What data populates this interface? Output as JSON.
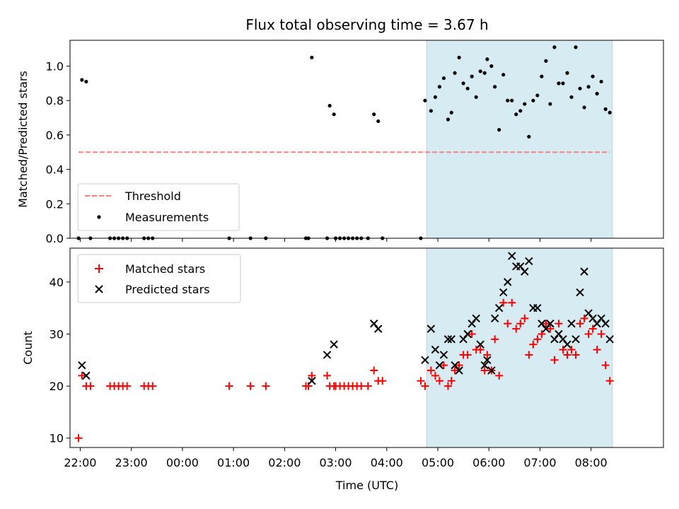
{
  "chart_data": [
    {
      "type": "scatter",
      "title": "Flux total observing time = 3.67 h",
      "ylabel": "Matched/Predicted stars",
      "xlabel": "",
      "ylim": [
        0,
        1.15
      ],
      "yticks": [
        "0.0",
        "0.2",
        "0.4",
        "0.6",
        "0.8",
        "1.0"
      ],
      "xlim": [
        "21:48",
        "09:25"
      ],
      "highlight_span": [
        "04:47",
        "08:25"
      ],
      "legend_position": "lower-left",
      "threshold": {
        "name": "Threshold",
        "value": 0.5,
        "x_start": "21:58",
        "x_end": "08:22",
        "color": "#ff7f7f",
        "style": "dashed"
      },
      "series": [
        {
          "name": "Measurements",
          "color": "#000000",
          "points": [
            [
              "21:58",
              0.0
            ],
            [
              "22:02",
              0.92
            ],
            [
              "22:07",
              0.91
            ],
            [
              "22:12",
              0.0
            ],
            [
              "22:35",
              0.0
            ],
            [
              "22:40",
              0.0
            ],
            [
              "22:45",
              0.0
            ],
            [
              "22:50",
              0.0
            ],
            [
              "22:55",
              0.0
            ],
            [
              "23:15",
              0.0
            ],
            [
              "23:20",
              0.0
            ],
            [
              "23:25",
              0.0
            ],
            [
              "00:55",
              0.0
            ],
            [
              "01:20",
              0.0
            ],
            [
              "01:38",
              0.0
            ],
            [
              "02:25",
              0.0
            ],
            [
              "02:28",
              0.0
            ],
            [
              "02:32",
              1.05
            ],
            [
              "02:50",
              0.0
            ],
            [
              "02:53",
              0.77
            ],
            [
              "02:58",
              0.72
            ],
            [
              "03:00",
              0.0
            ],
            [
              "03:05",
              0.0
            ],
            [
              "03:10",
              0.0
            ],
            [
              "03:15",
              0.0
            ],
            [
              "03:20",
              0.0
            ],
            [
              "03:25",
              0.0
            ],
            [
              "03:30",
              0.0
            ],
            [
              "03:38",
              0.0
            ],
            [
              "03:45",
              0.72
            ],
            [
              "03:50",
              0.68
            ],
            [
              "03:55",
              0.0
            ],
            [
              "04:40",
              0.0
            ],
            [
              "04:45",
              0.8
            ],
            [
              "04:52",
              0.74
            ],
            [
              "04:57",
              0.82
            ],
            [
              "05:02",
              0.88
            ],
            [
              "05:07",
              0.93
            ],
            [
              "05:12",
              0.69
            ],
            [
              "05:16",
              0.73
            ],
            [
              "05:20",
              0.96
            ],
            [
              "05:25",
              1.05
            ],
            [
              "05:30",
              0.9
            ],
            [
              "05:35",
              0.87
            ],
            [
              "05:40",
              0.94
            ],
            [
              "05:45",
              0.82
            ],
            [
              "05:50",
              0.97
            ],
            [
              "05:55",
              0.96
            ],
            [
              "05:58",
              1.04
            ],
            [
              "06:03",
              1.0
            ],
            [
              "06:07",
              0.88
            ],
            [
              "06:12",
              0.63
            ],
            [
              "06:17",
              0.95
            ],
            [
              "06:22",
              0.8
            ],
            [
              "06:27",
              0.8
            ],
            [
              "06:32",
              0.72
            ],
            [
              "06:37",
              0.74
            ],
            [
              "06:42",
              0.78
            ],
            [
              "06:47",
              0.59
            ],
            [
              "06:52",
              0.8
            ],
            [
              "06:57",
              0.83
            ],
            [
              "07:02",
              0.94
            ],
            [
              "07:07",
              1.03
            ],
            [
              "07:12",
              0.78
            ],
            [
              "07:17",
              1.11
            ],
            [
              "07:22",
              0.9
            ],
            [
              "07:27",
              0.9
            ],
            [
              "07:32",
              0.96
            ],
            [
              "07:37",
              0.82
            ],
            [
              "07:42",
              1.11
            ],
            [
              "07:47",
              0.87
            ],
            [
              "07:52",
              0.76
            ],
            [
              "07:57",
              0.88
            ],
            [
              "08:02",
              0.94
            ],
            [
              "08:07",
              0.84
            ],
            [
              "08:12",
              0.91
            ],
            [
              "08:17",
              0.75
            ],
            [
              "08:22",
              0.73
            ]
          ]
        }
      ]
    },
    {
      "type": "scatter",
      "title": "",
      "ylabel": "Count",
      "xlabel": "Time (UTC)",
      "ylim": [
        8.2,
        46.5
      ],
      "yticks": [
        "10",
        "20",
        "30",
        "40"
      ],
      "xticks": [
        "22:00",
        "23:00",
        "00:00",
        "01:00",
        "02:00",
        "03:00",
        "04:00",
        "05:00",
        "06:00",
        "07:00",
        "08:00"
      ],
      "xlim": [
        "21:48",
        "09:25"
      ],
      "highlight_span": [
        "04:47",
        "08:25"
      ],
      "legend_position": "upper-left",
      "series": [
        {
          "name": "Matched stars",
          "color": "#ff0000",
          "marker": "plus",
          "points": [
            [
              "21:58",
              10
            ],
            [
              "22:02",
              22
            ],
            [
              "22:07",
              20
            ],
            [
              "22:12",
              20
            ],
            [
              "22:35",
              20
            ],
            [
              "22:40",
              20
            ],
            [
              "22:45",
              20
            ],
            [
              "22:50",
              20
            ],
            [
              "22:55",
              20
            ],
            [
              "23:15",
              20
            ],
            [
              "23:20",
              20
            ],
            [
              "23:25",
              20
            ],
            [
              "00:55",
              20
            ],
            [
              "01:20",
              20
            ],
            [
              "01:38",
              20
            ],
            [
              "02:25",
              20
            ],
            [
              "02:28",
              20
            ],
            [
              "02:32",
              22
            ],
            [
              "02:50",
              22
            ],
            [
              "02:53",
              20
            ],
            [
              "02:58",
              20
            ],
            [
              "03:00",
              20
            ],
            [
              "03:05",
              20
            ],
            [
              "03:10",
              20
            ],
            [
              "03:15",
              20
            ],
            [
              "03:20",
              20
            ],
            [
              "03:25",
              20
            ],
            [
              "03:30",
              20
            ],
            [
              "03:38",
              20
            ],
            [
              "03:45",
              23
            ],
            [
              "03:50",
              21
            ],
            [
              "03:55",
              21
            ],
            [
              "04:40",
              21
            ],
            [
              "04:45",
              20
            ],
            [
              "04:52",
              23
            ],
            [
              "04:57",
              22
            ],
            [
              "05:02",
              21
            ],
            [
              "05:07",
              24
            ],
            [
              "05:12",
              20
            ],
            [
              "05:16",
              21
            ],
            [
              "05:20",
              23
            ],
            [
              "05:25",
              24
            ],
            [
              "05:30",
              26
            ],
            [
              "05:35",
              26
            ],
            [
              "05:40",
              30
            ],
            [
              "05:45",
              27
            ],
            [
              "05:50",
              27
            ],
            [
              "05:55",
              23
            ],
            [
              "05:58",
              26
            ],
            [
              "06:03",
              23
            ],
            [
              "06:07",
              29
            ],
            [
              "06:12",
              22
            ],
            [
              "06:17",
              36
            ],
            [
              "06:22",
              32
            ],
            [
              "06:27",
              36
            ],
            [
              "06:32",
              31
            ],
            [
              "06:37",
              32
            ],
            [
              "06:42",
              33
            ],
            [
              "06:47",
              26
            ],
            [
              "06:52",
              28
            ],
            [
              "06:57",
              29
            ],
            [
              "07:02",
              30
            ],
            [
              "07:07",
              32
            ],
            [
              "07:12",
              31
            ],
            [
              "07:17",
              25
            ],
            [
              "07:22",
              32
            ],
            [
              "07:27",
              27
            ],
            [
              "07:32",
              26
            ],
            [
              "07:37",
              27
            ],
            [
              "07:42",
              26
            ],
            [
              "07:47",
              32
            ],
            [
              "07:52",
              33
            ],
            [
              "07:57",
              30
            ],
            [
              "08:02",
              31
            ],
            [
              "08:07",
              27
            ],
            [
              "08:12",
              30
            ],
            [
              "08:17",
              24
            ],
            [
              "08:22",
              21
            ]
          ]
        },
        {
          "name": "Predicted stars",
          "color": "#000000",
          "marker": "x",
          "points": [
            [
              "22:02",
              24
            ],
            [
              "22:07",
              22
            ],
            [
              "02:32",
              21
            ],
            [
              "02:50",
              26
            ],
            [
              "02:58",
              28
            ],
            [
              "03:45",
              32
            ],
            [
              "03:50",
              31
            ],
            [
              "04:45",
              25
            ],
            [
              "04:52",
              31
            ],
            [
              "04:57",
              27
            ],
            [
              "05:02",
              24
            ],
            [
              "05:07",
              26
            ],
            [
              "05:12",
              29
            ],
            [
              "05:16",
              29
            ],
            [
              "05:20",
              24
            ],
            [
              "05:25",
              23
            ],
            [
              "05:30",
              29
            ],
            [
              "05:35",
              30
            ],
            [
              "05:40",
              32
            ],
            [
              "05:45",
              33
            ],
            [
              "05:50",
              28
            ],
            [
              "05:55",
              24
            ],
            [
              "05:58",
              25
            ],
            [
              "06:03",
              23
            ],
            [
              "06:07",
              33
            ],
            [
              "06:12",
              35
            ],
            [
              "06:17",
              38
            ],
            [
              "06:22",
              40
            ],
            [
              "06:27",
              45
            ],
            [
              "06:32",
              43
            ],
            [
              "06:37",
              43
            ],
            [
              "06:42",
              42
            ],
            [
              "06:47",
              44
            ],
            [
              "06:52",
              35
            ],
            [
              "06:57",
              35
            ],
            [
              "07:02",
              32
            ],
            [
              "07:07",
              31
            ],
            [
              "07:12",
              32
            ],
            [
              "07:17",
              29
            ],
            [
              "07:22",
              30
            ],
            [
              "07:27",
              29
            ],
            [
              "07:32",
              28
            ],
            [
              "07:37",
              32
            ],
            [
              "07:42",
              29
            ],
            [
              "07:47",
              38
            ],
            [
              "07:52",
              42
            ],
            [
              "07:57",
              34
            ],
            [
              "08:02",
              33
            ],
            [
              "08:07",
              32
            ],
            [
              "08:12",
              33
            ],
            [
              "08:17",
              32
            ],
            [
              "08:22",
              29
            ]
          ]
        }
      ]
    }
  ]
}
